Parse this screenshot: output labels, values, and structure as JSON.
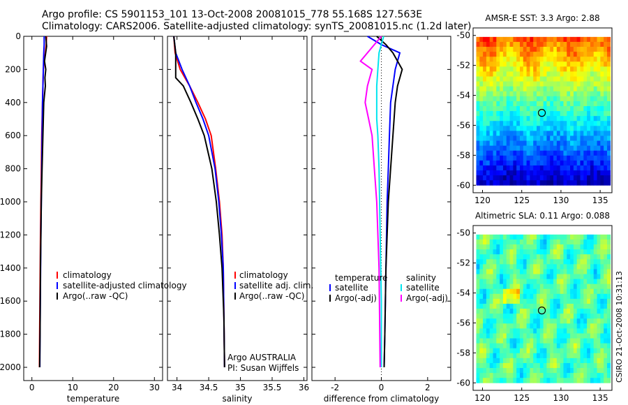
{
  "header": {
    "line1": "Argo profile: CS 5901153_101 13-Oct-2008 20081015_778 55.168S 127.563E",
    "line2": "Climatology: CARS2006. Satellite-adjusted climatology: synTS_20081015.nc (1.2d later)"
  },
  "credit": "CSIRO 21-Oct-2008 10:31:13",
  "colors": {
    "climatology": "#ff0000",
    "satellite": "#0000ff",
    "argo": "#000000",
    "salinity_satellite": "#00e5ee",
    "salinity_argo": "#ff00ff"
  },
  "chart_data": [
    {
      "id": "temperature",
      "type": "line",
      "xlabel": "temperature",
      "ylabel": "",
      "xlim": [
        -2,
        32
      ],
      "ylim": [
        2080,
        0
      ],
      "xticks": [
        0,
        10,
        20,
        30
      ],
      "yticks": [
        0,
        200,
        400,
        600,
        800,
        1000,
        1200,
        1400,
        1600,
        1800,
        2000
      ],
      "series": [
        {
          "name": "climatology",
          "color": "#ff0000",
          "x": [
            3.6,
            3.5,
            3.3,
            3.0,
            2.8,
            2.7,
            2.6,
            2.4,
            2.3,
            2.2,
            2.1,
            2.0,
            1.9,
            1.85
          ],
          "y": [
            0,
            50,
            100,
            150,
            200,
            300,
            400,
            600,
            800,
            1000,
            1200,
            1500,
            1800,
            2000
          ]
        },
        {
          "name": "satellite-adjusted climatology",
          "color": "#0000ff",
          "x": [
            3.0,
            3.0,
            2.9,
            2.8,
            2.7,
            2.6,
            2.5,
            2.4,
            2.3,
            2.2,
            2.1,
            2.0,
            1.95
          ],
          "y": [
            0,
            50,
            100,
            200,
            300,
            400,
            600,
            800,
            1000,
            1200,
            1500,
            1800,
            2000
          ]
        },
        {
          "name": "Argo(..raw -QC)",
          "color": "#000000",
          "x": [
            3.4,
            3.6,
            3.1,
            3.4,
            3.2,
            3.3,
            2.9,
            2.7,
            2.5,
            2.3,
            2.1,
            2.0,
            1.9
          ],
          "y": [
            0,
            60,
            150,
            200,
            250,
            300,
            400,
            600,
            800,
            1000,
            1400,
            1800,
            2000
          ]
        }
      ],
      "legend": [
        "climatology",
        "satellite-adjusted climatology",
        "Argo(..raw -QC)"
      ],
      "legend_position": "lower-right"
    },
    {
      "id": "salinity",
      "type": "line",
      "xlabel": "salinity",
      "ylabel": "",
      "xlim": [
        33.85,
        36.05
      ],
      "ylim": [
        2080,
        0
      ],
      "xticks": [
        34,
        34.5,
        35,
        35.5,
        36
      ],
      "yticks": [
        0,
        200,
        400,
        600,
        800,
        1000,
        1200,
        1400,
        1600,
        1800,
        2000
      ],
      "series": [
        {
          "name": "climatology",
          "color": "#ff0000",
          "x": [
            33.95,
            33.97,
            34.05,
            34.2,
            34.33,
            34.45,
            34.54,
            34.61,
            34.67,
            34.71,
            34.73,
            34.74,
            34.75
          ],
          "y": [
            0,
            100,
            200,
            300,
            400,
            500,
            600,
            800,
            1000,
            1200,
            1400,
            1700,
            2000
          ]
        },
        {
          "name": "satellite adj. clim.",
          "color": "#0000ff",
          "x": [
            33.95,
            33.98,
            34.08,
            34.2,
            34.3,
            34.41,
            34.5,
            34.6,
            34.66,
            34.7,
            34.73,
            34.74,
            34.75
          ],
          "y": [
            0,
            100,
            200,
            300,
            400,
            500,
            600,
            800,
            1000,
            1200,
            1400,
            1700,
            2000
          ]
        },
        {
          "name": "Argo(..raw -QC)",
          "color": "#000000",
          "x": [
            33.95,
            33.98,
            33.98,
            34.1,
            34.22,
            34.33,
            34.43,
            34.55,
            34.62,
            34.67,
            34.71,
            34.74,
            34.75
          ],
          "y": [
            0,
            100,
            250,
            300,
            400,
            500,
            600,
            800,
            1000,
            1200,
            1400,
            1700,
            2000
          ]
        }
      ],
      "legend": [
        "climatology",
        "satellite adj. clim.",
        "Argo(..raw -QC)"
      ],
      "legend_position": "lower-right",
      "annotation": [
        "Argo AUSTRALIA",
        "PI: Susan Wijffels"
      ]
    },
    {
      "id": "difference",
      "type": "line",
      "xlabel": "difference from climatology",
      "ylabel": "",
      "xlim": [
        -3,
        3
      ],
      "ylim": [
        2080,
        0
      ],
      "xticks": [
        -2,
        0,
        2
      ],
      "yticks": [
        0,
        200,
        400,
        600,
        800,
        1000,
        1200,
        1400,
        1600,
        1800,
        2000
      ],
      "series": [
        {
          "name": "temperature satellite",
          "color": "#0000ff",
          "x": [
            -0.6,
            0,
            0.8,
            0.6,
            0.5,
            0.4,
            0.35,
            0.3,
            0.25,
            0.2,
            0.15,
            0.12
          ],
          "y": [
            0,
            50,
            100,
            200,
            300,
            400,
            600,
            800,
            1000,
            1400,
            1800,
            2000
          ]
        },
        {
          "name": "temperature Argo(-adj)",
          "color": "#000000",
          "x": [
            -0.2,
            0.2,
            0.5,
            0.9,
            0.7,
            0.6,
            0.5,
            0.4,
            0.3,
            0.2,
            0.15,
            0.12
          ],
          "y": [
            0,
            50,
            100,
            200,
            300,
            400,
            600,
            800,
            1000,
            1400,
            1800,
            2000
          ]
        },
        {
          "name": "salinity satellite",
          "color": "#00e5ee",
          "x": [
            0.1,
            -0.1,
            -0.15,
            -0.2,
            -0.2,
            -0.2,
            -0.15,
            -0.1,
            -0.05,
            0,
            0
          ],
          "y": [
            0,
            100,
            200,
            300,
            400,
            500,
            600,
            800,
            1200,
            1600,
            2000
          ]
        },
        {
          "name": "salinity Argo(-adj)",
          "color": "#ff00ff",
          "x": [
            0,
            -0.9,
            -0.4,
            -0.6,
            -0.7,
            -0.55,
            -0.4,
            -0.3,
            -0.2,
            -0.1,
            -0.05
          ],
          "y": [
            0,
            150,
            200,
            300,
            400,
            500,
            600,
            800,
            1000,
            1400,
            2000
          ]
        }
      ],
      "legend": [
        "temperature",
        "satellite",
        "Argo(-adj)",
        "salinity",
        "satellite",
        "Argo(-adj)"
      ],
      "legend_position": "lower-right"
    },
    {
      "id": "sst-map",
      "type": "heatmap",
      "title": "AMSR-E SST: 3.3 Argo: 2.88",
      "xlim": [
        118.8,
        136.5
      ],
      "ylim": [
        -60.5,
        -49.5
      ],
      "xticks": [
        120,
        125,
        130,
        135
      ],
      "yticks": [
        -50,
        -52,
        -54,
        -56,
        -58,
        -60
      ],
      "marker": {
        "lon": 127.563,
        "lat": -55.168
      },
      "description_hint": "warm north, cool south"
    },
    {
      "id": "sla-map",
      "type": "heatmap",
      "title": "Altimetric SLA: 0.11 Argo: 0.088",
      "xlim": [
        118.8,
        136.5
      ],
      "ylim": [
        -60.5,
        -49.5
      ],
      "xticks": [
        120,
        125,
        130,
        135
      ],
      "yticks": [
        -50,
        -52,
        -54,
        -56,
        -58,
        -60
      ],
      "marker": {
        "lon": 127.563,
        "lat": -55.168
      }
    }
  ]
}
